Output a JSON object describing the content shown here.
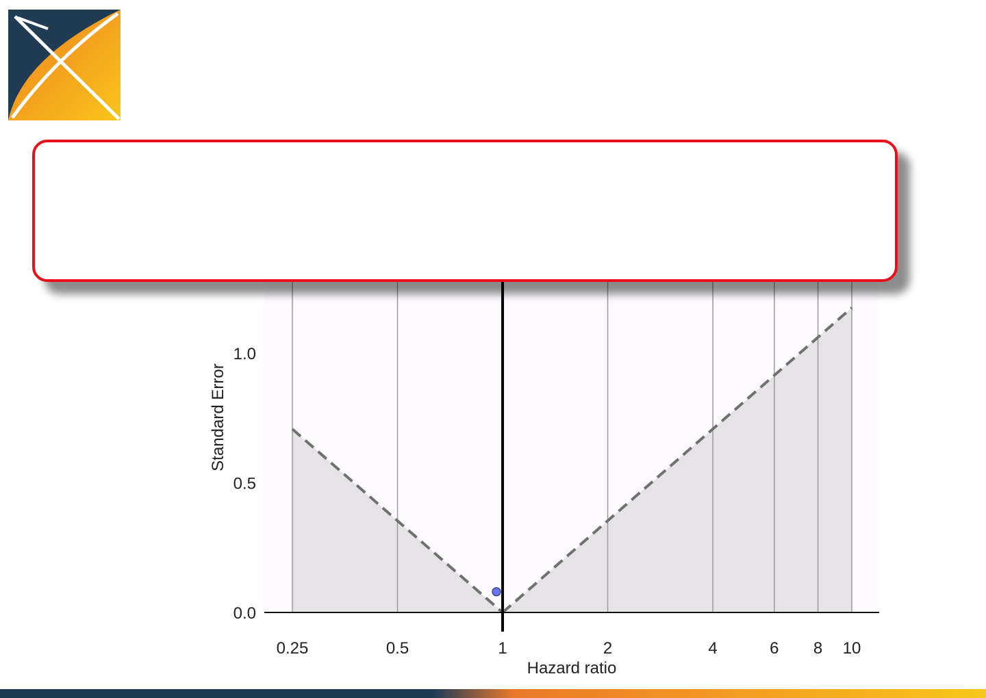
{
  "chart_data": {
    "type": "scatter",
    "title": "",
    "xlabel": "Hazard ratio",
    "ylabel": "Standard Error",
    "x_scale": "log",
    "x_ticks": [
      0.25,
      0.5,
      1,
      2,
      4,
      6,
      8,
      10
    ],
    "x_tick_labels": [
      "0.25",
      "0.5",
      "1",
      "2",
      "4",
      "6",
      "8",
      "10"
    ],
    "y_ticks": [
      0.0,
      0.5,
      1.0
    ],
    "y_tick_labels": [
      "0.0",
      "0.5",
      "1.0"
    ],
    "xlim": [
      0.2,
      14
    ],
    "ylim": [
      0.0,
      1.2
    ],
    "points": [
      {
        "x": 0.96,
        "y": 0.08
      }
    ],
    "reference_line_x": 1,
    "significance_boundary": [
      {
        "x": 0.25,
        "y": 0.707
      },
      {
        "x": 1,
        "y": 0.0
      },
      {
        "x": 10,
        "y": 1.175
      }
    ],
    "grid": "vertical",
    "colors": {
      "point": "#6677f0",
      "shaded_region": "#e6e3e7",
      "plot_background": "#fdfbfe",
      "boundary_line": "#707070"
    }
  },
  "callout": {
    "text": ""
  },
  "logo": {
    "name": "x-logo",
    "colors": [
      "#203c55",
      "#ef8a1f",
      "#f7c21a"
    ]
  }
}
